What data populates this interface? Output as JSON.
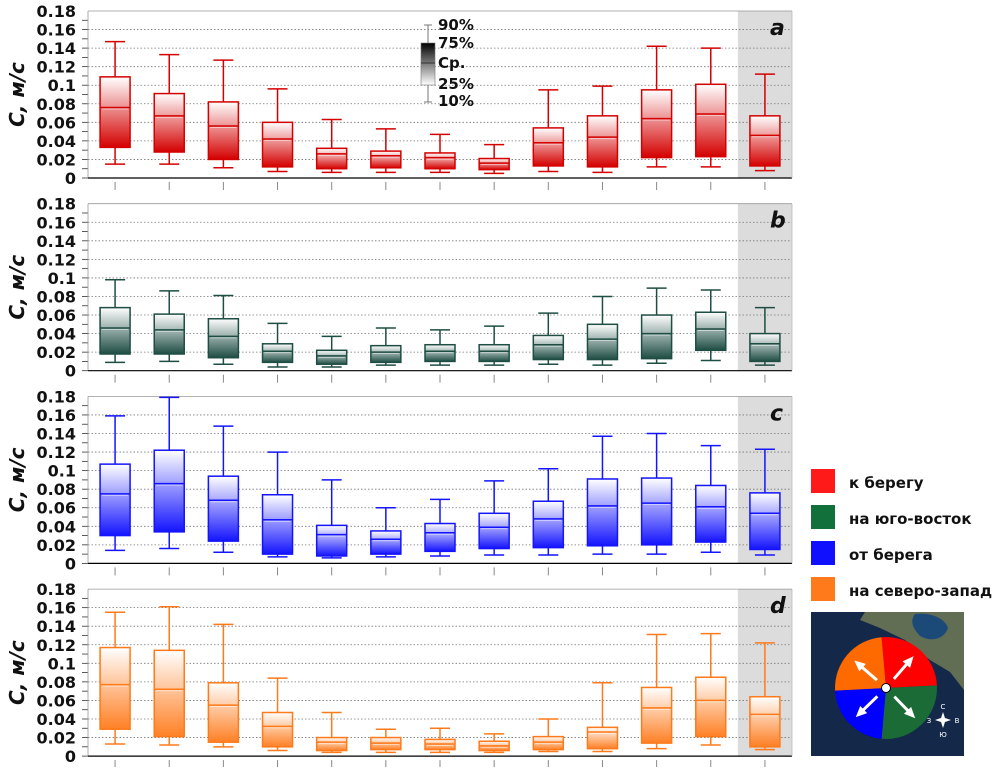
{
  "chart_data": [
    {
      "type": "box",
      "panel_label": "a",
      "ylabel": "C, м/с",
      "ylim": [
        0,
        0.18
      ],
      "yticks": [
        "0",
        "0.02",
        "0.04",
        "0.06",
        "0.08",
        "0.1",
        "0.12",
        "0.14",
        "0.16",
        "0.18"
      ],
      "color": "#d40000",
      "grid": true,
      "shaded_last_category": true,
      "stats_order": [
        "p10",
        "q25",
        "median",
        "q75",
        "p90"
      ],
      "boxes": [
        [
          0.015,
          0.033,
          0.076,
          0.109,
          0.147
        ],
        [
          0.015,
          0.028,
          0.067,
          0.091,
          0.133
        ],
        [
          0.011,
          0.02,
          0.056,
          0.082,
          0.127
        ],
        [
          0.007,
          0.012,
          0.042,
          0.06,
          0.096
        ],
        [
          0.006,
          0.01,
          0.026,
          0.032,
          0.063
        ],
        [
          0.006,
          0.011,
          0.024,
          0.029,
          0.053
        ],
        [
          0.006,
          0.01,
          0.022,
          0.027,
          0.047
        ],
        [
          0.005,
          0.009,
          0.016,
          0.021,
          0.036
        ],
        [
          0.007,
          0.013,
          0.038,
          0.054,
          0.095
        ],
        [
          0.006,
          0.012,
          0.044,
          0.067,
          0.099
        ],
        [
          0.012,
          0.022,
          0.064,
          0.095,
          0.142
        ],
        [
          0.012,
          0.023,
          0.069,
          0.101,
          0.14
        ],
        [
          0.008,
          0.013,
          0.046,
          0.067,
          0.112
        ]
      ]
    },
    {
      "type": "box",
      "panel_label": "b",
      "ylabel": "C, м/с",
      "ylim": [
        0,
        0.18
      ],
      "yticks": [
        "0",
        "0.02",
        "0.04",
        "0.06",
        "0.08",
        "0.1",
        "0.12",
        "0.14",
        "0.16",
        "0.18"
      ],
      "color": "#1e4d44",
      "grid": true,
      "shaded_last_category": true,
      "stats_order": [
        "p10",
        "q25",
        "median",
        "q75",
        "p90"
      ],
      "boxes": [
        [
          0.009,
          0.018,
          0.046,
          0.068,
          0.098
        ],
        [
          0.01,
          0.018,
          0.044,
          0.061,
          0.086
        ],
        [
          0.007,
          0.014,
          0.037,
          0.056,
          0.081
        ],
        [
          0.004,
          0.009,
          0.021,
          0.029,
          0.051
        ],
        [
          0.004,
          0.007,
          0.016,
          0.022,
          0.037
        ],
        [
          0.006,
          0.009,
          0.02,
          0.027,
          0.046
        ],
        [
          0.006,
          0.01,
          0.021,
          0.028,
          0.044
        ],
        [
          0.006,
          0.01,
          0.021,
          0.028,
          0.048
        ],
        [
          0.007,
          0.012,
          0.028,
          0.038,
          0.062
        ],
        [
          0.006,
          0.012,
          0.034,
          0.05,
          0.08
        ],
        [
          0.008,
          0.013,
          0.04,
          0.06,
          0.089
        ],
        [
          0.011,
          0.022,
          0.045,
          0.063,
          0.087
        ],
        [
          0.006,
          0.01,
          0.029,
          0.04,
          0.068
        ]
      ]
    },
    {
      "type": "box",
      "panel_label": "c",
      "ylabel": "C, м/с",
      "ylim": [
        0,
        0.18
      ],
      "yticks": [
        "0",
        "0.02",
        "0.04",
        "0.06",
        "0.08",
        "0.1",
        "0.12",
        "0.14",
        "0.16",
        "0.18"
      ],
      "color": "#1414ff",
      "grid": true,
      "shaded_last_category": true,
      "stats_order": [
        "p10",
        "q25",
        "median",
        "q75",
        "p90"
      ],
      "boxes": [
        [
          0.014,
          0.03,
          0.075,
          0.107,
          0.159
        ],
        [
          0.016,
          0.034,
          0.086,
          0.122,
          0.179
        ],
        [
          0.012,
          0.024,
          0.068,
          0.094,
          0.148
        ],
        [
          0.007,
          0.01,
          0.047,
          0.074,
          0.12
        ],
        [
          0.006,
          0.008,
          0.031,
          0.041,
          0.09
        ],
        [
          0.007,
          0.01,
          0.026,
          0.035,
          0.06
        ],
        [
          0.008,
          0.013,
          0.033,
          0.043,
          0.069
        ],
        [
          0.009,
          0.016,
          0.039,
          0.054,
          0.089
        ],
        [
          0.009,
          0.017,
          0.048,
          0.067,
          0.102
        ],
        [
          0.01,
          0.019,
          0.062,
          0.091,
          0.137
        ],
        [
          0.01,
          0.02,
          0.065,
          0.092,
          0.14
        ],
        [
          0.012,
          0.023,
          0.061,
          0.084,
          0.127
        ],
        [
          0.009,
          0.015,
          0.054,
          0.076,
          0.123
        ]
      ]
    },
    {
      "type": "box",
      "panel_label": "d",
      "ylabel": "C, м/с",
      "ylim": [
        0,
        0.18
      ],
      "yticks": [
        "0",
        "0.02",
        "0.04",
        "0.06",
        "0.08",
        "0.1",
        "0.12",
        "0.14",
        "0.16",
        "0.18"
      ],
      "color": "#ff7a1a",
      "grid": true,
      "shaded_last_category": true,
      "stats_order": [
        "p10",
        "q25",
        "median",
        "q75",
        "p90"
      ],
      "boxes": [
        [
          0.013,
          0.029,
          0.077,
          0.117,
          0.155
        ],
        [
          0.012,
          0.021,
          0.072,
          0.114,
          0.161
        ],
        [
          0.01,
          0.015,
          0.055,
          0.079,
          0.142
        ],
        [
          0.006,
          0.01,
          0.032,
          0.047,
          0.084
        ],
        [
          0.004,
          0.006,
          0.015,
          0.02,
          0.047
        ],
        [
          0.004,
          0.007,
          0.014,
          0.02,
          0.029
        ],
        [
          0.004,
          0.007,
          0.013,
          0.018,
          0.03
        ],
        [
          0.004,
          0.006,
          0.011,
          0.016,
          0.024
        ],
        [
          0.005,
          0.007,
          0.015,
          0.021,
          0.04
        ],
        [
          0.005,
          0.008,
          0.026,
          0.031,
          0.079
        ],
        [
          0.008,
          0.014,
          0.052,
          0.074,
          0.131
        ],
        [
          0.012,
          0.021,
          0.06,
          0.085,
          0.132
        ],
        [
          0.007,
          0.01,
          0.045,
          0.064,
          0.122
        ]
      ]
    }
  ],
  "box_key": {
    "labels": [
      "90%",
      "75%",
      "Ср.",
      "25%",
      "10%"
    ]
  },
  "legend": [
    {
      "label": "к берегу",
      "color": "#ff1a1a"
    },
    {
      "label": "на юго-восток",
      "color": "#12703a"
    },
    {
      "label": "от берега",
      "color": "#1010ff"
    },
    {
      "label": "на северо-запад",
      "color": "#ff7a1a"
    }
  ],
  "map": {
    "compass": {
      "n": "С",
      "s": "Ю",
      "w": "З",
      "e": "В"
    },
    "sector_colors": [
      "#ff0000",
      "#1a6b35",
      "#0000ff",
      "#ff6a00"
    ]
  }
}
